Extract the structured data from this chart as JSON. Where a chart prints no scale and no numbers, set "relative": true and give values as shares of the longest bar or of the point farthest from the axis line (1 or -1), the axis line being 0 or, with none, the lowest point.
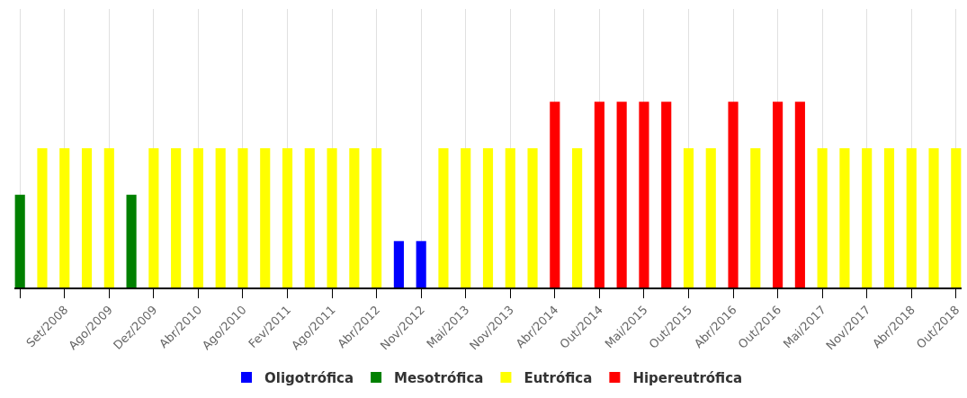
{
  "chart_data": {
    "type": "bar",
    "relative": true,
    "grid": "x",
    "legend": "bottom",
    "categories": [
      null,
      null,
      "Set/2008",
      null,
      "Ago/2009",
      null,
      "Dez/2009",
      null,
      "Abr/2010",
      null,
      "Ago/2010",
      null,
      "Fev/2011",
      null,
      "Ago/2011",
      null,
      "Abr/2012",
      null,
      "Nov/2012",
      null,
      "Mai/2013",
      null,
      "Nov/2013",
      null,
      "Abr/2014",
      null,
      "Out/2014",
      null,
      "Mai/2015",
      null,
      "Out/2015",
      null,
      "Abr/2016",
      null,
      "Out/2016",
      null,
      "Mai/2017",
      null,
      "Nov/2017",
      null,
      "Abr/2018",
      null,
      "Out/2018"
    ],
    "series": [
      {
        "name": "Oligotrófica",
        "color": "#0000ff",
        "values": [
          null,
          null,
          null,
          null,
          null,
          null,
          null,
          null,
          null,
          null,
          null,
          null,
          null,
          null,
          null,
          null,
          null,
          0.25,
          0.25,
          null,
          null,
          null,
          null,
          null,
          null,
          null,
          null,
          null,
          null,
          null,
          null,
          null,
          null,
          null,
          null,
          null,
          null,
          null,
          null,
          null,
          null,
          null,
          null
        ]
      },
      {
        "name": "Mesotrófica",
        "color": "#008000",
        "values": [
          0.5,
          null,
          null,
          null,
          null,
          0.5,
          null,
          null,
          null,
          null,
          null,
          null,
          null,
          null,
          null,
          null,
          null,
          null,
          null,
          null,
          null,
          null,
          null,
          null,
          null,
          null,
          null,
          null,
          null,
          null,
          null,
          null,
          null,
          null,
          null,
          null,
          null,
          null,
          null,
          null,
          null,
          null,
          null
        ]
      },
      {
        "name": "Eutrófica",
        "color": "#ffff00",
        "values": [
          null,
          0.75,
          0.75,
          0.75,
          0.75,
          null,
          0.75,
          0.75,
          0.75,
          0.75,
          0.75,
          0.75,
          0.75,
          0.75,
          0.75,
          0.75,
          0.75,
          null,
          null,
          0.75,
          0.75,
          0.75,
          0.75,
          0.75,
          null,
          0.75,
          null,
          null,
          null,
          null,
          0.75,
          0.75,
          null,
          0.75,
          null,
          null,
          0.75,
          0.75,
          0.75,
          0.75,
          0.75,
          0.75,
          0.75
        ]
      },
      {
        "name": "Hipereutrófica",
        "color": "#ff0000",
        "values": [
          null,
          null,
          null,
          null,
          null,
          null,
          null,
          null,
          null,
          null,
          null,
          null,
          null,
          null,
          null,
          null,
          null,
          null,
          null,
          null,
          null,
          null,
          null,
          null,
          1,
          null,
          1,
          1,
          1,
          1,
          null,
          null,
          1,
          null,
          1,
          1,
          null,
          null,
          null,
          null,
          null,
          null,
          null
        ]
      }
    ]
  }
}
